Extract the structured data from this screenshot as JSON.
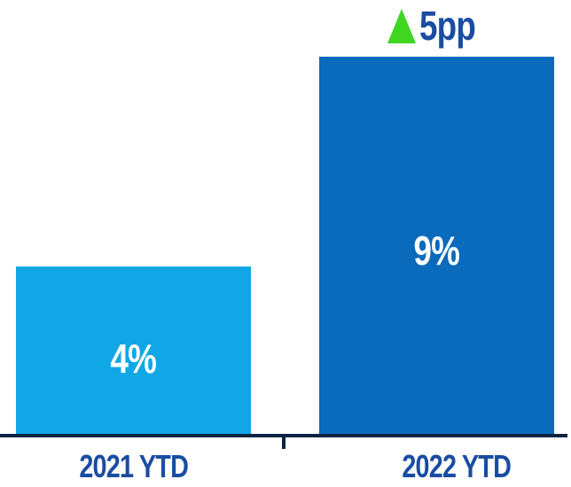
{
  "chart_data": {
    "type": "bar",
    "categories": [
      "2021 YTD",
      "2022 YTD"
    ],
    "values": [
      4,
      9
    ],
    "value_labels": [
      "4%",
      "9%"
    ],
    "annotation": {
      "icon": "up-triangle-icon",
      "text": "5pp"
    },
    "title": "",
    "xlabel": "",
    "ylabel": "",
    "ylim": [
      0,
      10
    ],
    "grid": false,
    "legend": false,
    "colors": {
      "bar_2021": "#11A7E6",
      "bar_2022": "#0A6ABB",
      "annotation_triangle": "#3FD622",
      "label_text": "#1A4DA1",
      "axis_line": "#0E2342",
      "value_text": "#FFFFFF"
    }
  }
}
